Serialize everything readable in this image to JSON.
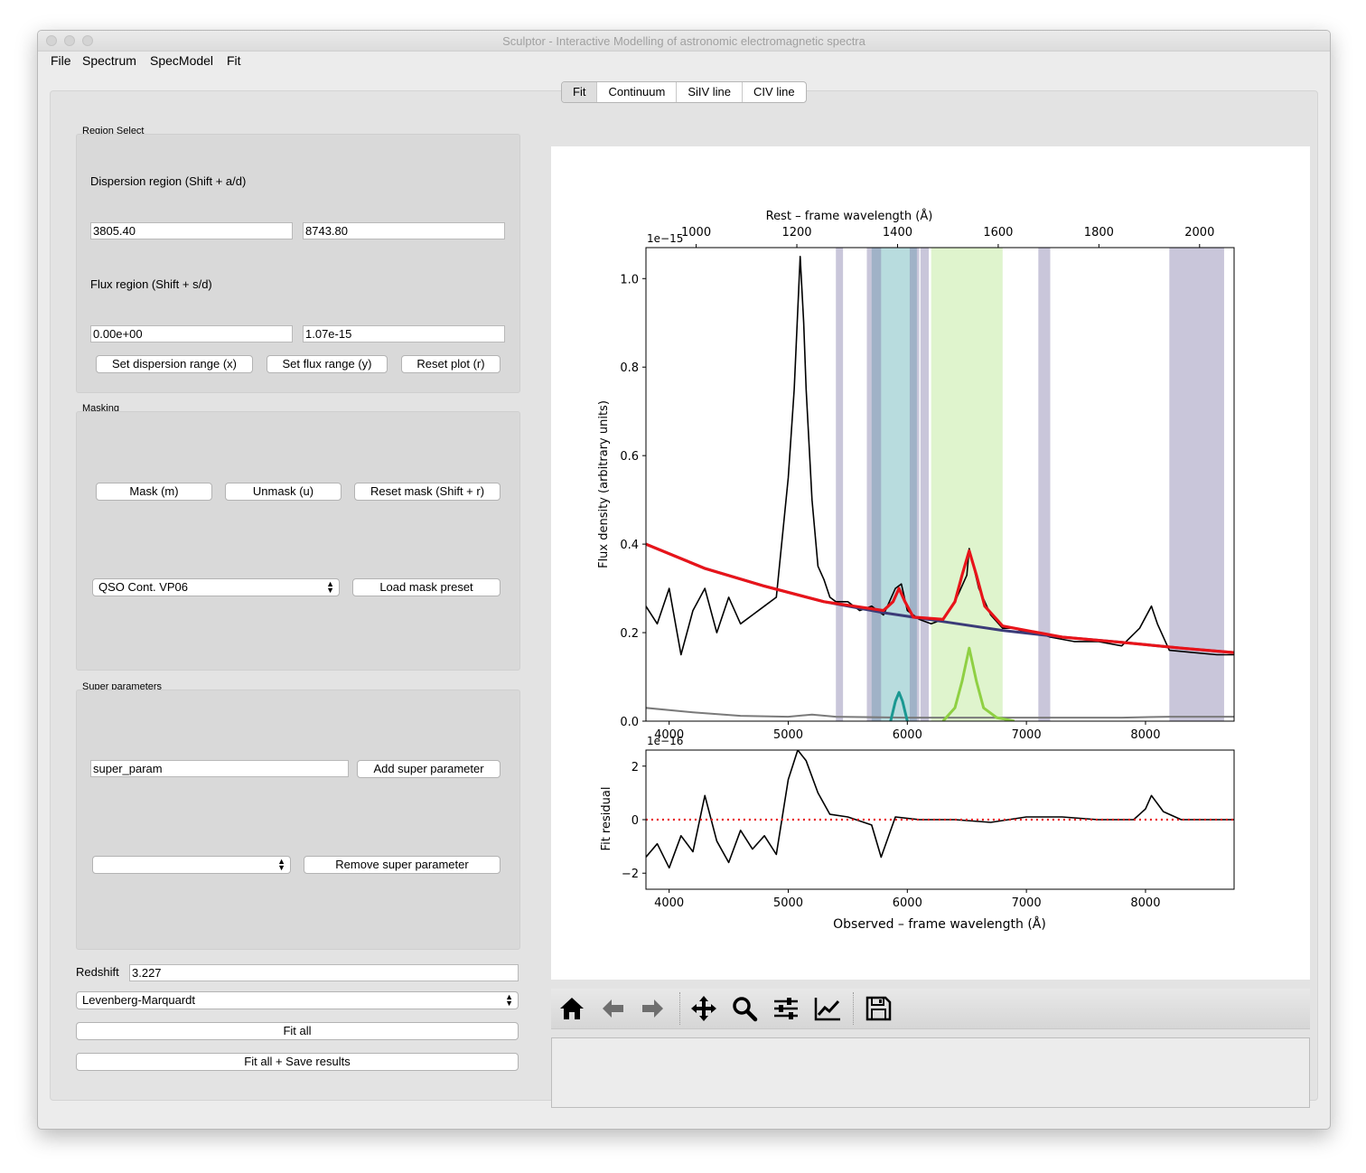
{
  "window": {
    "title": "Sculptor - Interactive Modelling of astronomic electromagnetic spectra"
  },
  "menu": [
    "File",
    "Spectrum",
    "SpecModel",
    "Fit"
  ],
  "tabs": [
    {
      "label": "Fit",
      "active": true
    },
    {
      "label": "Continuum",
      "active": false
    },
    {
      "label": "SiIV line",
      "active": false
    },
    {
      "label": "CIV line",
      "active": false
    }
  ],
  "region_select": {
    "title": "Region Select",
    "dispersion_label": "Dispersion region (Shift + a/d)",
    "dispersion_min": "3805.40",
    "dispersion_max": "8743.80",
    "flux_label": "Flux region (Shift + s/d)",
    "flux_min": "0.00e+00",
    "flux_max": "1.07e-15",
    "set_dispersion_button": "Set dispersion range (x)",
    "set_flux_button": "Set flux range (y)",
    "reset_plot_button": "Reset plot (r)"
  },
  "masking": {
    "title": "Masking",
    "mask_button": "Mask (m)",
    "unmask_button": "Unmask (u)",
    "reset_mask_button": "Reset mask (Shift + r)",
    "preset_selected": "QSO Cont. VP06",
    "load_preset_button": "Load mask preset"
  },
  "super_parameters": {
    "title": "Super parameters",
    "name_value": "super_param",
    "add_button": "Add super parameter",
    "selected": "",
    "remove_button": "Remove super parameter"
  },
  "redshift": {
    "label": "Redshift",
    "value": "3.227"
  },
  "fit": {
    "method_selected": "Levenberg-Marquardt",
    "fit_all_button": "Fit all",
    "fit_save_button": "Fit all + Save results"
  },
  "toolbar_icons": [
    "home-icon",
    "back-arrow-icon",
    "forward-arrow-icon",
    "pan-icon",
    "zoom-icon",
    "configure-subplots-icon",
    "edit-axis-icon",
    "save-icon"
  ],
  "chart_data": [
    {
      "type": "line",
      "title": "",
      "xlabel": "",
      "ylabel": "Flux density (arbitrary units)",
      "y_offset_text": "1e−15",
      "xlim": [
        3805.4,
        8743.8
      ],
      "ylim": [
        0.0,
        1.07
      ],
      "x_ticks": [
        "4000",
        "5000",
        "6000",
        "7000",
        "8000"
      ],
      "y_ticks": [
        "0.0",
        "0.2",
        "0.4",
        "0.6",
        "0.8",
        "1.0"
      ],
      "top_axis": {
        "label": "Rest – frame wavelength (Å)",
        "ticks": [
          "1000",
          "1200",
          "1400",
          "1600",
          "1800",
          "2000"
        ],
        "redshift": 3.227
      },
      "masked_regions": [
        [
          5400,
          5460
        ],
        [
          5660,
          5700
        ],
        [
          5700,
          5780
        ],
        [
          6020,
          6100
        ],
        [
          6110,
          6180
        ],
        [
          7100,
          7200
        ],
        [
          8200,
          8660
        ]
      ],
      "line_regions": [
        {
          "name": "SiIV line",
          "range": [
            5700,
            6080
          ],
          "color": "#88c4c8"
        },
        {
          "name": "CIV line",
          "range": [
            6200,
            6800
          ],
          "color": "#c9edac"
        }
      ],
      "series": [
        {
          "role": "spectrum",
          "color": "#000000",
          "x": [
            3805,
            3900,
            4000,
            4100,
            4200,
            4300,
            4400,
            4500,
            4600,
            4700,
            4800,
            4900,
            5000,
            5050,
            5100,
            5130,
            5150,
            5200,
            5250,
            5300,
            5350,
            5400,
            5500,
            5600,
            5700,
            5800,
            5900,
            5950,
            6000,
            6100,
            6200,
            6300,
            6400,
            6500,
            6520,
            6600,
            6700,
            6800,
            6900,
            7000,
            7100,
            7200,
            7400,
            7600,
            7800,
            7950,
            8050,
            8100,
            8200,
            8400,
            8600,
            8743
          ],
          "y": [
            0.26,
            0.22,
            0.3,
            0.15,
            0.25,
            0.3,
            0.2,
            0.28,
            0.22,
            0.24,
            0.26,
            0.28,
            0.55,
            0.75,
            1.05,
            0.9,
            0.75,
            0.5,
            0.35,
            0.32,
            0.28,
            0.27,
            0.27,
            0.25,
            0.26,
            0.24,
            0.3,
            0.31,
            0.25,
            0.23,
            0.22,
            0.23,
            0.27,
            0.33,
            0.39,
            0.3,
            0.24,
            0.21,
            0.21,
            0.2,
            0.2,
            0.19,
            0.18,
            0.18,
            0.17,
            0.21,
            0.26,
            0.22,
            0.16,
            0.155,
            0.15,
            0.15
          ]
        },
        {
          "role": "continuum",
          "color": "#3b3b78",
          "x": [
            3805,
            4300,
            4800,
            5300,
            5800,
            6300,
            6800,
            7300,
            7800,
            8300,
            8743
          ],
          "y": [
            0.4,
            0.345,
            0.305,
            0.27,
            0.245,
            0.225,
            0.205,
            0.19,
            0.178,
            0.165,
            0.155
          ]
        },
        {
          "role": "total model",
          "color": "#e8141a",
          "x": [
            3805,
            4300,
            4800,
            5300,
            5800,
            5880,
            5930,
            5980,
            6050,
            6300,
            6400,
            6460,
            6520,
            6580,
            6650,
            6800,
            7300,
            7800,
            8300,
            8743
          ],
          "y": [
            0.4,
            0.345,
            0.305,
            0.27,
            0.25,
            0.27,
            0.3,
            0.27,
            0.235,
            0.23,
            0.27,
            0.33,
            0.385,
            0.33,
            0.26,
            0.215,
            0.19,
            0.178,
            0.165,
            0.155
          ]
        },
        {
          "role": "SiIV component",
          "color": "#1a9892",
          "x": [
            5860,
            5900,
            5930,
            5960,
            6000
          ],
          "y": [
            0.0,
            0.045,
            0.065,
            0.045,
            0.0
          ]
        },
        {
          "role": "CIV component",
          "color": "#8fd043",
          "x": [
            6300,
            6400,
            6460,
            6520,
            6580,
            6640,
            6750,
            6900
          ],
          "y": [
            0.0,
            0.03,
            0.09,
            0.165,
            0.09,
            0.03,
            0.008,
            0.0
          ]
        },
        {
          "role": "flux error",
          "color": "#7a7a7a",
          "x": [
            3805,
            4200,
            4600,
            5000,
            5200,
            5400,
            6000,
            6600,
            7200,
            7800,
            8200,
            8743
          ],
          "y": [
            0.03,
            0.02,
            0.012,
            0.01,
            0.015,
            0.01,
            0.008,
            0.008,
            0.008,
            0.008,
            0.01,
            0.01
          ]
        }
      ]
    },
    {
      "type": "line",
      "title": "",
      "xlabel": "Observed – frame wavelength (Å)",
      "ylabel": "Fit residual",
      "y_offset_text": "1e−16",
      "xlim": [
        3805.4,
        8743.8
      ],
      "ylim": [
        -2.6,
        2.6
      ],
      "x_ticks": [
        "4000",
        "5000",
        "6000",
        "7000",
        "8000"
      ],
      "y_ticks": [
        "−2",
        "0",
        "2"
      ],
      "series": [
        {
          "role": "residual",
          "color": "#000000",
          "x": [
            3805,
            3900,
            4000,
            4100,
            4200,
            4300,
            4400,
            4500,
            4600,
            4700,
            4800,
            4900,
            5000,
            5080,
            5150,
            5250,
            5350,
            5500,
            5700,
            5780,
            5900,
            6100,
            6400,
            6700,
            7000,
            7300,
            7600,
            7900,
            8000,
            8050,
            8150,
            8300,
            8500,
            8743
          ],
          "y": [
            -1.4,
            -0.9,
            -1.8,
            -0.6,
            -1.2,
            0.9,
            -0.8,
            -1.6,
            -0.4,
            -1.1,
            -0.6,
            -1.3,
            1.5,
            2.6,
            2.2,
            1.0,
            0.2,
            0.1,
            -0.2,
            -1.4,
            0.1,
            0.0,
            0.0,
            -0.1,
            0.1,
            0.1,
            0.0,
            0.0,
            0.4,
            0.9,
            0.3,
            0.0,
            0.0,
            0.0
          ]
        },
        {
          "role": "zero line",
          "color": "#e8141a",
          "dashed": true,
          "x": [
            3805,
            8743
          ],
          "y": [
            0,
            0
          ]
        }
      ]
    }
  ]
}
